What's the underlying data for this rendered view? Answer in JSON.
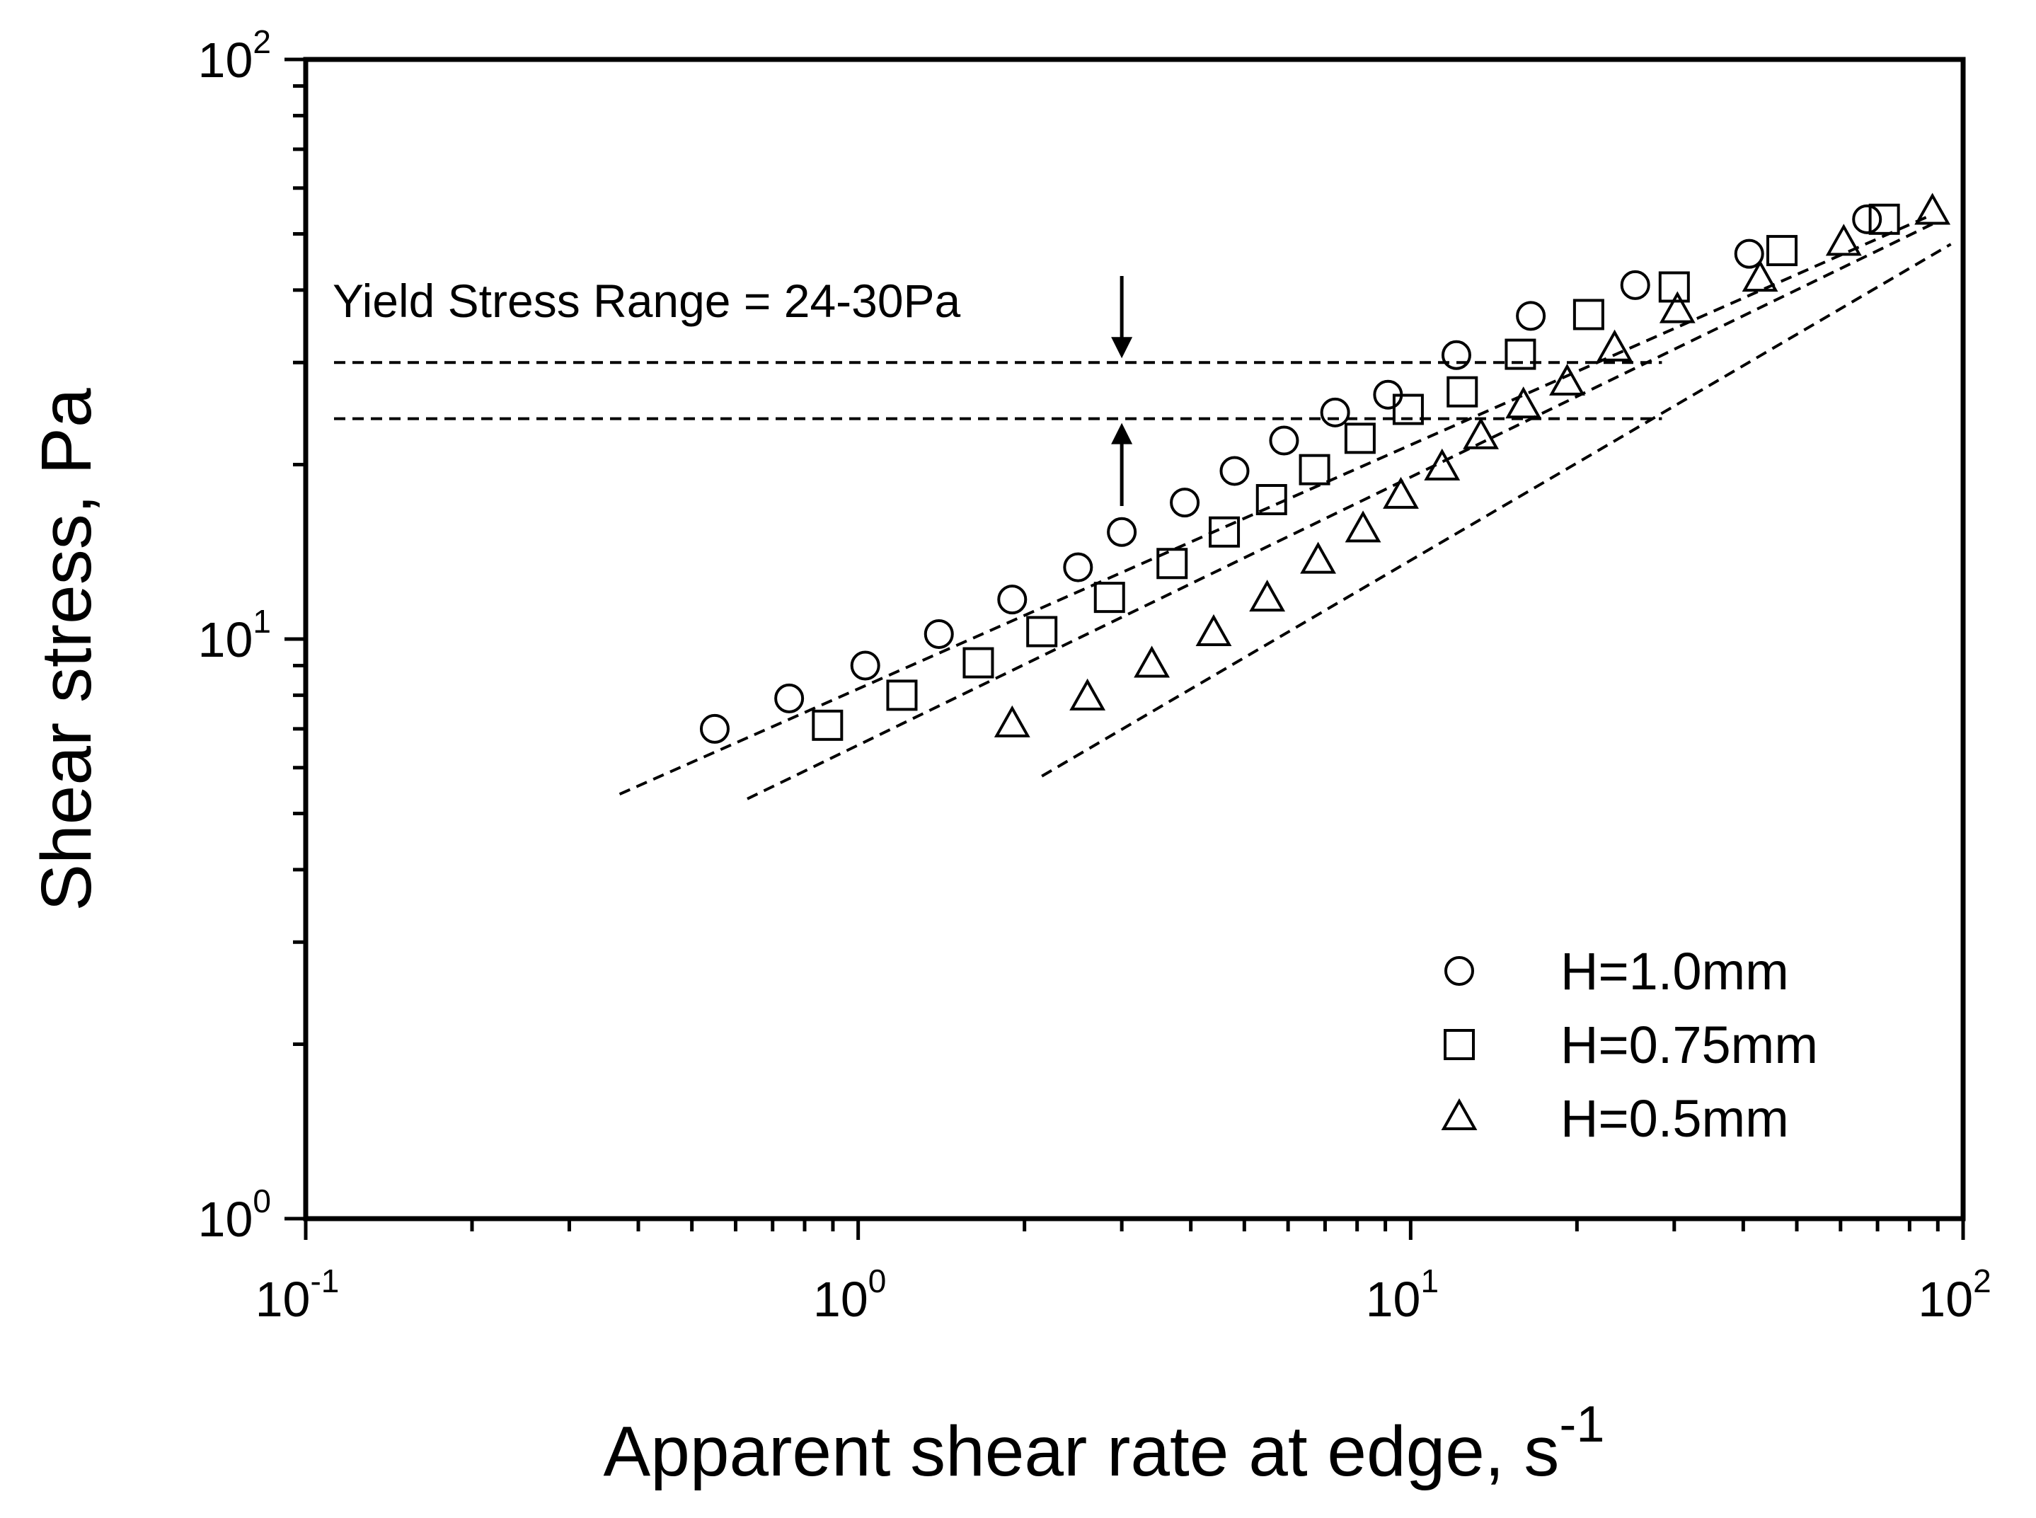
{
  "chart_data": {
    "type": "scatter",
    "title": "",
    "xlabel": "Apparent shear rate at edge, s",
    "xlabel_superscript": "-1",
    "ylabel": "Shear stress, Pa",
    "xscale": "log",
    "yscale": "log",
    "xlim": [
      0.1,
      100
    ],
    "ylim": [
      1,
      100
    ],
    "x_ticks": [
      {
        "base": "10",
        "exp": "-1"
      },
      {
        "base": "10",
        "exp": "0"
      },
      {
        "base": "10",
        "exp": "1"
      },
      {
        "base": "10",
        "exp": "2"
      }
    ],
    "y_ticks": [
      {
        "base": "10",
        "exp": "0"
      },
      {
        "base": "10",
        "exp": "1"
      },
      {
        "base": "10",
        "exp": "2"
      }
    ],
    "grid": false,
    "legend_position": "bottom-right",
    "series": [
      {
        "name": "H=1.0mm",
        "marker": "circle",
        "x": [
          0.55,
          0.75,
          1.03,
          1.4,
          1.9,
          2.5,
          3.0,
          3.9,
          4.8,
          5.9,
          7.3,
          9.1,
          12.1,
          16.5,
          25.5,
          41,
          67
        ],
        "y": [
          7.0,
          7.9,
          9.0,
          10.2,
          11.7,
          13.3,
          15.3,
          17.2,
          19.5,
          22.0,
          24.6,
          26.4,
          30.9,
          36.1,
          40.8,
          46.2,
          53.0
        ],
        "fit": {
          "x": [
            0.37,
            88
          ],
          "y": [
            5.4,
            54
          ]
        }
      },
      {
        "name": "H=0.75mm",
        "marker": "square",
        "x": [
          0.88,
          1.2,
          1.65,
          2.15,
          2.85,
          3.7,
          4.6,
          5.6,
          6.7,
          8.1,
          9.9,
          12.4,
          15.8,
          21,
          30,
          47,
          72
        ],
        "y": [
          7.1,
          8.0,
          9.1,
          10.3,
          11.8,
          13.5,
          15.3,
          17.4,
          19.6,
          22.2,
          24.9,
          26.7,
          31.0,
          36.3,
          40.5,
          46.8,
          53.0
        ],
        "fit": {
          "x": [
            0.63,
            88
          ],
          "y": [
            5.3,
            52
          ]
        }
      },
      {
        "name": "H=0.5mm",
        "marker": "triangle",
        "x": [
          1.9,
          2.6,
          3.4,
          4.4,
          5.5,
          6.8,
          8.2,
          9.6,
          11.4,
          13.4,
          16,
          19.2,
          23.4,
          30.4,
          42.9,
          60.8,
          88
        ],
        "y": [
          7.1,
          7.9,
          9.0,
          10.2,
          11.7,
          13.6,
          15.4,
          17.6,
          19.7,
          22.3,
          25.2,
          27.6,
          31.6,
          36.8,
          41.7,
          48.1,
          54.4
        ],
        "fit": {
          "x": [
            2.15,
            95
          ],
          "y": [
            5.8,
            48
          ]
        }
      }
    ],
    "annotations": [
      {
        "text": "Yield Stress Range = 24-30Pa",
        "upper_line_y": 30,
        "lower_line_y": 24,
        "x_start": 0.1,
        "x_end": 28.5,
        "arrow_x": 3.0
      }
    ]
  }
}
